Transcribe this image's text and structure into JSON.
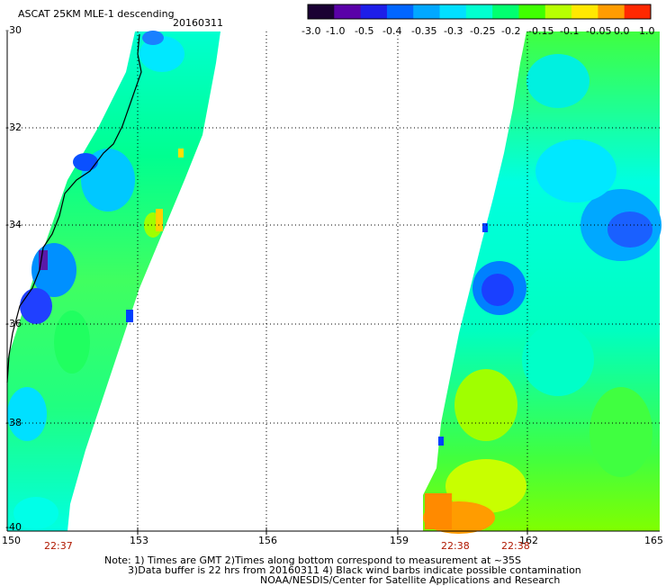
{
  "title": "ASCAT 25KM MLE-1 descending",
  "date": "20160311",
  "colorbar": {
    "labels": [
      "-3.0",
      "-1.0",
      "-0.5",
      "-0.4",
      "-0.35",
      "-0.3",
      "-0.25",
      "-0.2",
      "-0.15",
      "-0.1",
      "-0.05",
      "0.0",
      "1.0"
    ],
    "colors": [
      "#1a0033",
      "#5a00a8",
      "#1e1ee8",
      "#0066ff",
      "#00a8ff",
      "#00e0ff",
      "#00ffd0",
      "#00ff70",
      "#40ff00",
      "#b8ff00",
      "#ffe800",
      "#ff9c00",
      "#ff2800"
    ]
  },
  "lat_labels": [
    "-30",
    "-32",
    "-34",
    "-36",
    "-38",
    "-40"
  ],
  "lon_labels": [
    "150",
    "153",
    "156",
    "159",
    "162",
    "165"
  ],
  "time_labels": [
    "22:37",
    "22:38",
    "22:38"
  ],
  "notes": {
    "line1": "Note: 1) Times are GMT 2)Times along bottom correspond to measurement at ~35S",
    "line2": "3)Data buffer is 22 hrs from 20160311 4) Black wind barbs indicate possible contamination",
    "line3": "NOAA/NESDIS/Center for Satellite Applications and Research"
  }
}
